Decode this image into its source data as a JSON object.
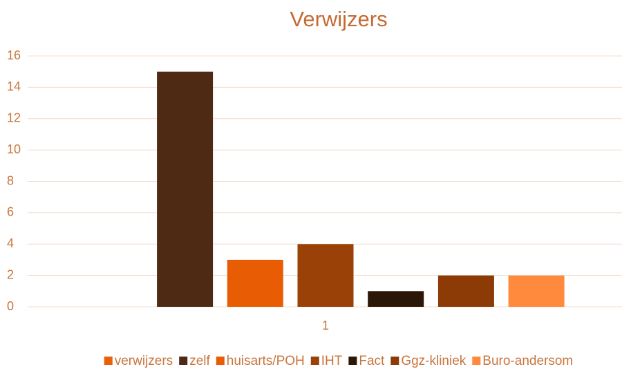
{
  "chart_data": {
    "type": "bar",
    "title": "Verwijzers",
    "categories": [
      "1"
    ],
    "series": [
      {
        "name": "verwijzers",
        "color": "#e8600a",
        "values": [
          null
        ]
      },
      {
        "name": "zelf",
        "color": "#4e2a14",
        "values": [
          15
        ]
      },
      {
        "name": "huisarts/POH",
        "color": "#e85d04",
        "values": [
          3
        ]
      },
      {
        "name": "IHT",
        "color": "#9a4108",
        "values": [
          4
        ]
      },
      {
        "name": "Fact",
        "color": "#2b1708",
        "values": [
          1
        ]
      },
      {
        "name": "Ggz-kliniek",
        "color": "#8c3a06",
        "values": [
          2
        ]
      },
      {
        "name": "Buro-andersom",
        "color": "#ff8a3d",
        "values": [
          2
        ]
      }
    ],
    "ylim": [
      0,
      16
    ],
    "yticks": [
      0,
      2,
      4,
      6,
      8,
      10,
      12,
      14,
      16
    ],
    "grid": true,
    "legend": "bottom"
  }
}
